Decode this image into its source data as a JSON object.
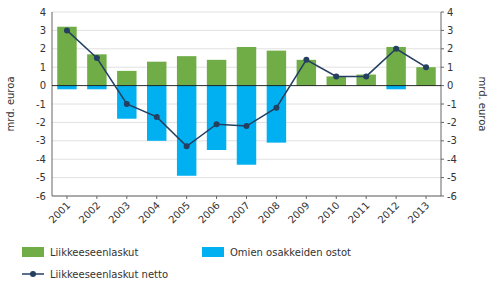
{
  "chart_data": {
    "type": "bar",
    "categories": [
      "2001",
      "2002",
      "2003",
      "2004",
      "2005",
      "2006",
      "2007",
      "2008",
      "2009",
      "2010",
      "2011",
      "2012",
      "2013"
    ],
    "series": [
      {
        "name": "Liikkeeseenlaskut",
        "type": "bar",
        "color": "#70ad47",
        "values": [
          3.2,
          1.7,
          0.8,
          1.3,
          1.6,
          1.4,
          2.1,
          1.9,
          1.4,
          0.5,
          0.6,
          2.1,
          1.0
        ]
      },
      {
        "name": "Omien osakkeiden ostot",
        "type": "bar",
        "color": "#00b0f0",
        "values": [
          -0.2,
          -0.2,
          -1.8,
          -3.0,
          -4.9,
          -3.5,
          -4.3,
          -3.1,
          0.0,
          0.0,
          0.0,
          -0.2,
          0.0
        ]
      },
      {
        "name": "Liikkeeseenlaskut netto",
        "type": "line",
        "color": "#243f60",
        "marker": "circle",
        "line_style": "solid",
        "values": [
          3.0,
          1.5,
          -1.0,
          -1.7,
          -3.3,
          -2.1,
          -2.2,
          -1.2,
          1.4,
          0.5,
          0.5,
          2.0,
          1.0
        ]
      }
    ],
    "stacked": false,
    "ylabel": "mrd. euroa",
    "ylim": [
      -6,
      4
    ],
    "yticks": [
      -6,
      -5,
      -4,
      -3,
      -2,
      -1,
      0,
      1,
      2,
      3,
      4
    ],
    "y2label": "mrd. euroa",
    "y2lim": [
      -6,
      4
    ],
    "y2ticks": [
      -6,
      -5,
      -4,
      -3,
      -2,
      -1,
      0,
      1,
      2,
      3,
      4
    ],
    "grid": true,
    "legend": "bottom"
  }
}
